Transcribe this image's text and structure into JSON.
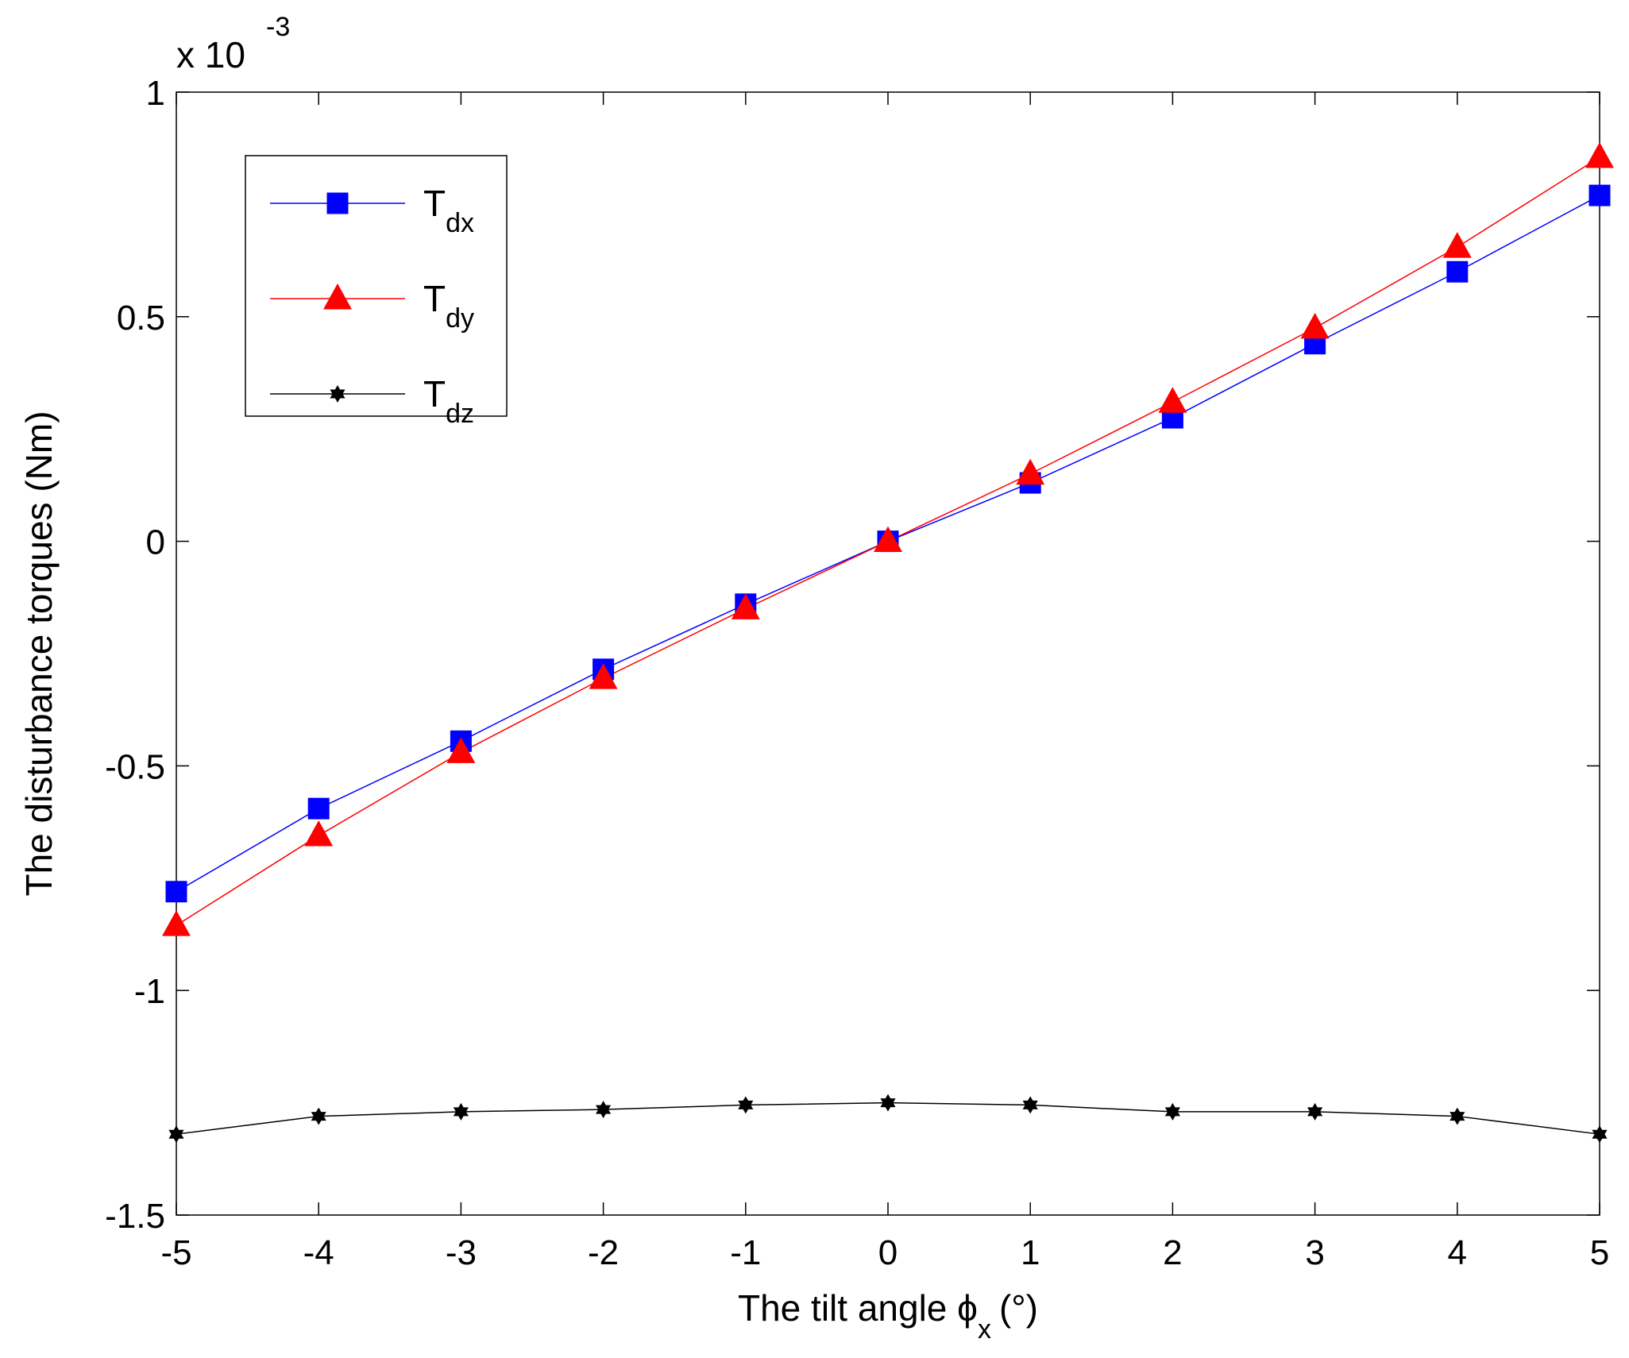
{
  "chart_data": {
    "type": "line",
    "title": "",
    "xlabel": "The tilt angle",
    "xlabel_symbol": "ϕ",
    "xlabel_subscript": "x",
    "xlabel_unit": "(°)",
    "ylabel": "The disturbance torques (Nm)",
    "y_multiplier": {
      "base": "x 10",
      "exponent": "-3"
    },
    "xlim": [
      -5,
      5
    ],
    "ylim": [
      -1.5,
      1
    ],
    "x_ticks": [
      -5,
      -4,
      -3,
      -2,
      -1,
      0,
      1,
      2,
      3,
      4,
      5
    ],
    "x_tick_labels": [
      "-5",
      "-4",
      "-3",
      "-2",
      "-1",
      "0",
      "1",
      "2",
      "3",
      "4",
      "5"
    ],
    "y_ticks": [
      -1.5,
      -1,
      -0.5,
      0,
      0.5,
      1
    ],
    "y_tick_labels": [
      "-1.5",
      "-1",
      "-0.5",
      "0",
      "0.5",
      "1"
    ],
    "grid": false,
    "legend_position": "top-left",
    "x": [
      -5,
      -4,
      -3,
      -2,
      -1,
      0,
      1,
      2,
      3,
      4,
      5
    ],
    "series": [
      {
        "name": "T",
        "subscript": "dx",
        "color": "#0000ff",
        "marker": "square",
        "values": [
          -0.78,
          -0.595,
          -0.445,
          -0.285,
          -0.14,
          0,
          0.13,
          0.275,
          0.44,
          0.6,
          0.77
        ]
      },
      {
        "name": "T",
        "subscript": "dy",
        "color": "#ff0000",
        "marker": "triangle",
        "values": [
          -0.855,
          -0.655,
          -0.47,
          -0.305,
          -0.15,
          0,
          0.15,
          0.31,
          0.475,
          0.655,
          0.855
        ]
      },
      {
        "name": "T",
        "subscript": "dz",
        "color": "#000000",
        "marker": "star",
        "values": [
          -1.32,
          -1.28,
          -1.27,
          -1.265,
          -1.255,
          -1.25,
          -1.255,
          -1.27,
          -1.27,
          -1.28,
          -1.32
        ]
      }
    ]
  }
}
